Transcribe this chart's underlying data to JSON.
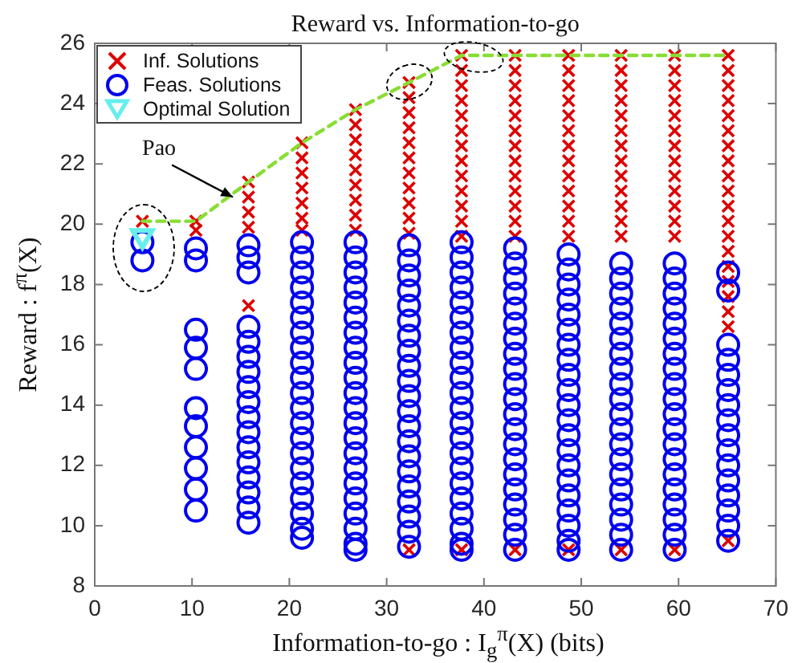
{
  "chart_data": {
    "type": "scatter",
    "title": "Reward vs. Information-to-go",
    "xlabel": "Information-to-go : I$_{g}$$^{π}$(X) (bits)",
    "ylabel": "Reward : f$^{π}$(X)",
    "xlim": [
      0,
      70
    ],
    "xticks": [
      0,
      10,
      20,
      30,
      40,
      50,
      60,
      70
    ],
    "ylim": [
      8,
      26
    ],
    "yticks": [
      8,
      10,
      12,
      14,
      16,
      18,
      20,
      22,
      24,
      26
    ],
    "grid": false,
    "legend": "top left",
    "annotations": [
      {
        "text": "Pao",
        "x": 14.2,
        "y": 20.9
      }
    ],
    "series": [
      {
        "name": "Inf. Solutions",
        "type": "scatter",
        "marker": "cross",
        "color": "#dd0000",
        "x": [
          4.9,
          10.4,
          10.4,
          15.8,
          15.8,
          15.8,
          15.8,
          15.8,
          21.3,
          21.3,
          21.3,
          21.3,
          21.3,
          21.3,
          21.3,
          26.8,
          26.8,
          26.8,
          26.8,
          26.8,
          26.8,
          26.8,
          26.8,
          26.8,
          32.3,
          32.3,
          32.3,
          32.3,
          32.3,
          32.3,
          32.3,
          32.3,
          32.3,
          32.3,
          32.3,
          32.3,
          37.7,
          37.7,
          37.7,
          37.7,
          37.7,
          37.7,
          37.7,
          37.7,
          37.7,
          37.7,
          37.7,
          37.7,
          37.7,
          37.7,
          43.2,
          43.2,
          43.2,
          43.2,
          43.2,
          43.2,
          43.2,
          43.2,
          43.2,
          43.2,
          43.2,
          43.2,
          43.2,
          43.2,
          48.7,
          48.7,
          48.7,
          48.7,
          48.7,
          48.7,
          48.7,
          48.7,
          48.7,
          48.7,
          48.7,
          48.7,
          48.7,
          48.7,
          54.1,
          54.1,
          54.1,
          54.1,
          54.1,
          54.1,
          54.1,
          54.1,
          54.1,
          54.1,
          54.1,
          54.1,
          54.1,
          54.1,
          59.6,
          59.6,
          59.6,
          59.6,
          59.6,
          59.6,
          59.6,
          59.6,
          59.6,
          59.6,
          59.6,
          59.6,
          59.6,
          59.6,
          65.1,
          65.1,
          65.1,
          65.1,
          65.1,
          65.1,
          65.1,
          65.1,
          65.1,
          65.1,
          65.1,
          65.1,
          65.1,
          65.1,
          65.1,
          65.1,
          65.1,
          65.1,
          65.1,
          65.1
        ],
        "values": [
          20.1,
          20.1,
          19.8,
          21.4,
          20.9,
          20.4,
          19.9,
          17.3,
          22.7,
          22.2,
          21.7,
          21.2,
          20.7,
          20.2,
          19.8,
          23.8,
          23.3,
          22.8,
          22.3,
          21.8,
          21.3,
          20.8,
          20.3,
          19.8,
          24.7,
          24.2,
          23.7,
          23.2,
          22.7,
          22.2,
          21.7,
          21.2,
          20.7,
          20.2,
          19.7,
          9.2,
          25.6,
          25.1,
          24.6,
          24.1,
          23.6,
          23.1,
          22.6,
          22.1,
          21.6,
          21.1,
          20.6,
          20.1,
          19.6,
          9.2,
          25.6,
          25.1,
          24.6,
          24.1,
          23.6,
          23.1,
          22.6,
          22.1,
          21.6,
          21.1,
          20.6,
          20.1,
          19.6,
          9.2,
          25.6,
          25.1,
          24.6,
          24.1,
          23.6,
          23.1,
          22.6,
          22.1,
          21.6,
          21.1,
          20.6,
          20.1,
          19.6,
          9.2,
          25.6,
          25.1,
          24.6,
          24.1,
          23.6,
          23.1,
          22.6,
          22.1,
          21.6,
          21.1,
          20.6,
          20.1,
          19.6,
          9.2,
          25.6,
          25.1,
          24.6,
          24.1,
          23.6,
          23.1,
          22.6,
          22.1,
          21.6,
          21.1,
          20.6,
          20.1,
          19.6,
          9.2,
          25.6,
          25.1,
          24.6,
          24.1,
          23.6,
          23.1,
          22.6,
          22.1,
          21.6,
          21.1,
          20.6,
          20.1,
          19.6,
          19.1,
          18.6,
          18.1,
          17.6,
          17.1,
          16.6,
          9.5
        ]
      },
      {
        "name": "Feas. Solutions",
        "type": "scatter",
        "marker": "circle",
        "color": "#0000ee",
        "x": [
          4.9,
          4.9,
          10.4,
          10.4,
          10.4,
          10.4,
          10.4,
          10.4,
          10.4,
          10.4,
          10.4,
          10.4,
          10.4,
          15.8,
          15.8,
          15.8,
          15.8,
          15.8,
          15.8,
          15.8,
          15.8,
          15.8,
          15.8,
          15.8,
          15.8,
          15.8,
          15.8,
          15.8,
          15.8,
          15.8,
          21.3,
          21.3,
          21.3,
          21.3,
          21.3,
          21.3,
          21.3,
          21.3,
          21.3,
          21.3,
          21.3,
          21.3,
          21.3,
          21.3,
          21.3,
          21.3,
          21.3,
          21.3,
          21.3,
          21.3,
          21.3,
          26.8,
          26.8,
          26.8,
          26.8,
          26.8,
          26.8,
          26.8,
          26.8,
          26.8,
          26.8,
          26.8,
          26.8,
          26.8,
          26.8,
          26.8,
          26.8,
          26.8,
          26.8,
          26.8,
          26.8,
          26.8,
          26.8,
          32.3,
          32.3,
          32.3,
          32.3,
          32.3,
          32.3,
          32.3,
          32.3,
          32.3,
          32.3,
          32.3,
          32.3,
          32.3,
          32.3,
          32.3,
          32.3,
          32.3,
          32.3,
          32.3,
          32.3,
          32.3,
          37.7,
          37.7,
          37.7,
          37.7,
          37.7,
          37.7,
          37.7,
          37.7,
          37.7,
          37.7,
          37.7,
          37.7,
          37.7,
          37.7,
          37.7,
          37.7,
          37.7,
          37.7,
          37.7,
          37.7,
          37.7,
          37.7,
          43.2,
          43.2,
          43.2,
          43.2,
          43.2,
          43.2,
          43.2,
          43.2,
          43.2,
          43.2,
          43.2,
          43.2,
          43.2,
          43.2,
          43.2,
          43.2,
          43.2,
          43.2,
          43.2,
          43.2,
          43.2,
          48.7,
          48.7,
          48.7,
          48.7,
          48.7,
          48.7,
          48.7,
          48.7,
          48.7,
          48.7,
          48.7,
          48.7,
          48.7,
          48.7,
          48.7,
          48.7,
          48.7,
          48.7,
          48.7,
          48.7,
          48.7,
          54.1,
          54.1,
          54.1,
          54.1,
          54.1,
          54.1,
          54.1,
          54.1,
          54.1,
          54.1,
          54.1,
          54.1,
          54.1,
          54.1,
          54.1,
          54.1,
          54.1,
          54.1,
          54.1,
          54.1,
          59.6,
          59.6,
          59.6,
          59.6,
          59.6,
          59.6,
          59.6,
          59.6,
          59.6,
          59.6,
          59.6,
          59.6,
          59.6,
          59.6,
          59.6,
          59.6,
          59.6,
          59.6,
          59.6,
          59.6,
          65.1,
          65.1,
          65.1,
          65.1,
          65.1,
          65.1,
          65.1,
          65.1,
          65.1,
          65.1,
          65.1,
          65.1,
          65.1,
          65.1,
          65.1,
          65.1
        ],
        "values": [
          19.4,
          18.8,
          19.2,
          18.8,
          16.5,
          15.9,
          15.2,
          13.9,
          13.3,
          12.6,
          11.9,
          11.2,
          10.5,
          19.3,
          18.9,
          18.4,
          16.6,
          16.1,
          15.6,
          15.1,
          14.6,
          14.1,
          13.6,
          13.1,
          12.6,
          12.1,
          11.6,
          11.1,
          10.6,
          10.1,
          19.4,
          18.9,
          18.4,
          17.9,
          17.4,
          16.9,
          16.4,
          15.9,
          15.4,
          14.9,
          14.4,
          13.9,
          13.4,
          12.9,
          12.4,
          11.9,
          11.4,
          10.9,
          10.4,
          9.9,
          9.6,
          19.4,
          18.9,
          18.4,
          17.9,
          17.4,
          16.9,
          16.4,
          15.9,
          15.4,
          14.9,
          14.4,
          13.9,
          13.4,
          12.9,
          12.4,
          11.9,
          11.4,
          10.9,
          10.4,
          9.9,
          9.4,
          9.2,
          19.3,
          18.8,
          18.3,
          17.8,
          17.3,
          16.8,
          16.3,
          15.8,
          15.3,
          14.8,
          14.3,
          13.8,
          13.3,
          12.8,
          12.3,
          11.8,
          11.3,
          10.8,
          10.3,
          9.8,
          9.3,
          19.4,
          18.9,
          18.4,
          17.9,
          17.4,
          16.9,
          16.4,
          15.9,
          15.4,
          14.9,
          14.4,
          13.9,
          13.4,
          12.9,
          12.4,
          11.9,
          11.4,
          10.9,
          10.4,
          9.9,
          9.4,
          9.2,
          19.2,
          18.7,
          18.2,
          17.7,
          17.2,
          16.7,
          16.2,
          15.7,
          15.2,
          14.7,
          14.2,
          13.7,
          13.2,
          12.7,
          12.2,
          11.7,
          11.2,
          10.7,
          10.2,
          9.7,
          9.2,
          19.0,
          18.5,
          18.0,
          17.5,
          17.0,
          16.5,
          16.0,
          15.5,
          15.0,
          14.5,
          14.0,
          13.5,
          13.0,
          12.5,
          12.0,
          11.5,
          11.0,
          10.5,
          10.0,
          9.5,
          9.2,
          18.7,
          18.2,
          17.7,
          17.2,
          16.7,
          16.2,
          15.7,
          15.2,
          14.7,
          14.2,
          13.7,
          13.2,
          12.7,
          12.2,
          11.7,
          11.2,
          10.7,
          10.2,
          9.7,
          9.2,
          18.7,
          18.2,
          17.7,
          17.2,
          16.7,
          16.2,
          15.7,
          15.2,
          14.7,
          14.2,
          13.7,
          13.2,
          12.7,
          12.2,
          11.7,
          11.2,
          10.7,
          10.2,
          9.7,
          9.2,
          18.4,
          17.8,
          16.0,
          15.5,
          15.0,
          14.5,
          14.0,
          13.5,
          13.0,
          12.5,
          12.0,
          11.5,
          11.0,
          10.5,
          10.0,
          9.5
        ]
      },
      {
        "name": "Optimal Solution",
        "type": "scatter",
        "marker": "triangle",
        "color": "#66eeee",
        "x": [
          4.9
        ],
        "values": [
          19.6
        ]
      },
      {
        "type": "line",
        "marker": "none",
        "line_style": "dashed",
        "color": "#88dd33",
        "x": [
          4.9,
          10.4,
          15.8,
          21.3,
          26.8,
          32.3,
          37.7,
          43.2,
          48.7,
          54.1,
          59.6,
          65.1
        ],
        "values": [
          20.1,
          20.1,
          21.4,
          22.7,
          23.8,
          24.7,
          25.6,
          25.6,
          25.6,
          25.6,
          25.6,
          25.6
        ]
      }
    ]
  }
}
